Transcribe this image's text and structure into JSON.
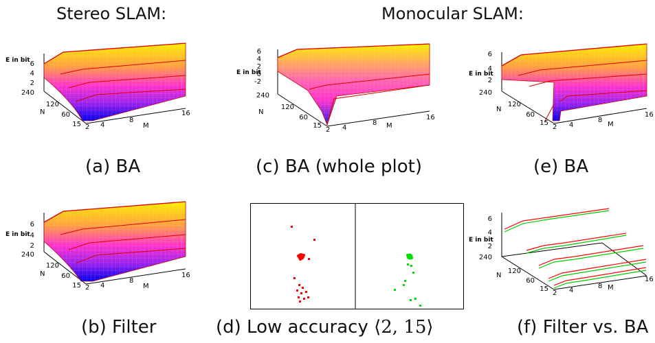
{
  "headers": {
    "stereo": "Stereo SLAM:",
    "mono": "Monocular SLAM:"
  },
  "axis": {
    "z_label": "E in bit",
    "n_label": "N",
    "m_label": "M",
    "n_ticks": [
      "240",
      "120",
      "60",
      "15"
    ],
    "m_ticks": [
      "2",
      "4",
      "8",
      "16"
    ]
  },
  "panels": [
    {
      "id": "a",
      "caption": "(a) BA",
      "z_ticks": [
        "6",
        "4",
        "2"
      ]
    },
    {
      "id": "b",
      "caption": "(b) Filter",
      "z_ticks": [
        "6",
        "4",
        "2"
      ]
    },
    {
      "id": "c",
      "caption": "(c) BA (whole plot)",
      "z_ticks": [
        "6",
        "4",
        "2",
        "0",
        "-2"
      ]
    },
    {
      "id": "d",
      "caption_prefix": "(d) Low accuracy ",
      "caption_math": "⟨2, 15⟩"
    },
    {
      "id": "e",
      "caption": "(e) BA",
      "z_ticks": [
        "6",
        "4",
        "2"
      ]
    },
    {
      "id": "f",
      "caption": "(f) Filter vs. BA",
      "z_ticks": [
        "6",
        "4",
        "2"
      ]
    }
  ],
  "colors": {
    "ba": "#ff0000",
    "filter": "#00cc00",
    "grad_top": "#ffee00",
    "grad_mid": "#ff33cc",
    "grad_low": "#0000ee"
  }
}
